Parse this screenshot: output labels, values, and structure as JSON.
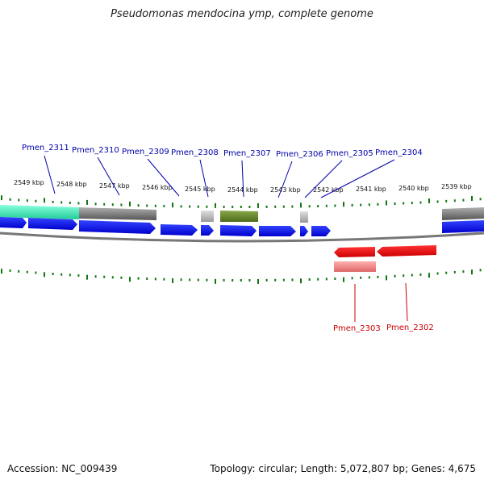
{
  "title": "Pseudomonas mendocina ymp, complete genome",
  "accession": "Accession: NC_009439",
  "stats": "Topology: circular; Length: 5,072,807 bp; Genes: 4,675",
  "scale_labels": [
    "2549 kbp",
    "2548 kbp",
    "2547 kbp",
    "2546 kbp",
    "2545 kbp",
    "2544 kbp",
    "2543 kbp",
    "2542 kbp",
    "2541 kbp",
    "2540 kbp",
    "2539 kbp"
  ],
  "top_genes": [
    "Pmen_2311",
    "Pmen_2310",
    "Pmen_2309",
    "Pmen_2308",
    "Pmen_2307",
    "Pmen_2306",
    "Pmen_2305",
    "Pmen_2304"
  ],
  "bottom_genes": [
    "Pmen_2303",
    "Pmen_2302"
  ],
  "colors": {
    "forward_gene": "#0000ee",
    "reverse_gene": "#ee0000",
    "forward_label": "#0000aa",
    "reverse_label": "#cc0000",
    "backbone": "#888888",
    "tick": "#117711",
    "rna": "#bbbbbb",
    "highlight_teal": "#33ddaa",
    "highlight_olive": "#6b8e23",
    "pseudo_reverse": "#ee8888"
  }
}
